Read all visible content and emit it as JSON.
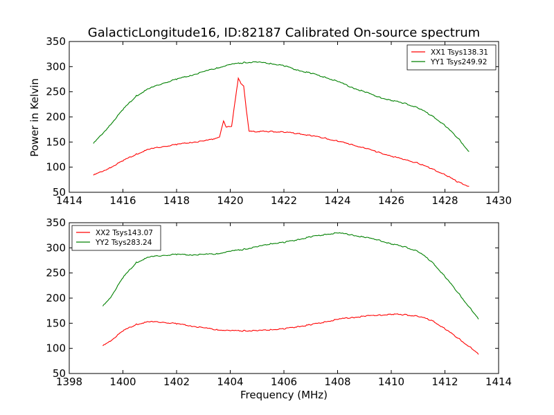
{
  "colors": {
    "xx": "#ff0000",
    "yy": "#008000"
  },
  "chart_data": [
    {
      "type": "line",
      "title": "GalacticLongitude16, ID:82187 Calibrated On-source spectrum",
      "xlabel": "",
      "ylabel": "Power in Kelvin",
      "xlim": [
        1414,
        1430
      ],
      "ylim": [
        50,
        350
      ],
      "xticks": [
        1414,
        1416,
        1418,
        1420,
        1422,
        1424,
        1426,
        1428,
        1430
      ],
      "yticks": [
        50,
        100,
        150,
        200,
        250,
        300,
        350
      ],
      "legend": "top-right",
      "series": [
        {
          "name": "XX1 Tsys138.31",
          "color": "#ff0000",
          "points": [
            [
              1414.9,
              84
            ],
            [
              1415.5,
              98
            ],
            [
              1416.0,
              113
            ],
            [
              1416.5,
              126
            ],
            [
              1417.0,
              136
            ],
            [
              1417.5,
              141
            ],
            [
              1418.0,
              145
            ],
            [
              1418.5,
              149
            ],
            [
              1419.0,
              152
            ],
            [
              1419.3,
              155
            ],
            [
              1419.6,
              160
            ],
            [
              1419.75,
              191
            ],
            [
              1419.85,
              180
            ],
            [
              1419.95,
              180
            ],
            [
              1420.05,
              182
            ],
            [
              1420.2,
              238
            ],
            [
              1420.3,
              278
            ],
            [
              1420.4,
              265
            ],
            [
              1420.5,
              262
            ],
            [
              1420.6,
              213
            ],
            [
              1420.7,
              172
            ],
            [
              1420.8,
              171
            ],
            [
              1421.0,
              171
            ],
            [
              1421.5,
              171
            ],
            [
              1422.0,
              170
            ],
            [
              1422.5,
              167
            ],
            [
              1423.0,
              163
            ],
            [
              1423.5,
              158
            ],
            [
              1424.0,
              152
            ],
            [
              1424.5,
              145
            ],
            [
              1425.0,
              138
            ],
            [
              1425.5,
              130
            ],
            [
              1426.0,
              122
            ],
            [
              1426.5,
              115
            ],
            [
              1427.0,
              108
            ],
            [
              1427.5,
              97
            ],
            [
              1428.0,
              85
            ],
            [
              1428.5,
              70
            ],
            [
              1428.9,
              62
            ]
          ]
        },
        {
          "name": "YY1 Tsys249.92",
          "color": "#008000",
          "points": [
            [
              1414.9,
              147
            ],
            [
              1415.5,
              182
            ],
            [
              1416.0,
              215
            ],
            [
              1416.5,
              242
            ],
            [
              1417.0,
              257
            ],
            [
              1417.5,
              267
            ],
            [
              1418.0,
              275
            ],
            [
              1418.5,
              282
            ],
            [
              1419.0,
              290
            ],
            [
              1419.5,
              297
            ],
            [
              1420.0,
              304
            ],
            [
              1420.5,
              308
            ],
            [
              1421.0,
              309
            ],
            [
              1421.5,
              306
            ],
            [
              1422.0,
              302
            ],
            [
              1422.5,
              293
            ],
            [
              1423.0,
              287
            ],
            [
              1423.5,
              279
            ],
            [
              1424.0,
              271
            ],
            [
              1424.5,
              259
            ],
            [
              1425.0,
              250
            ],
            [
              1425.5,
              240
            ],
            [
              1426.0,
              233
            ],
            [
              1426.5,
              227
            ],
            [
              1427.0,
              218
            ],
            [
              1427.5,
              203
            ],
            [
              1428.0,
              183
            ],
            [
              1428.5,
              157
            ],
            [
              1428.9,
              131
            ]
          ]
        }
      ]
    },
    {
      "type": "line",
      "title": "",
      "xlabel": "Frequency (MHz)",
      "ylabel": "",
      "xlim": [
        1398,
        1414
      ],
      "ylim": [
        50,
        350
      ],
      "xticks": [
        1398,
        1400,
        1402,
        1404,
        1406,
        1408,
        1410,
        1412,
        1414
      ],
      "yticks": [
        50,
        100,
        150,
        200,
        250,
        300,
        350
      ],
      "legend": "top-left",
      "series": [
        {
          "name": "XX2 Tsys143.07",
          "color": "#ff0000",
          "points": [
            [
              1399.25,
              105
            ],
            [
              1399.5,
              113
            ],
            [
              1400.0,
              135
            ],
            [
              1400.5,
              148
            ],
            [
              1401.0,
              153
            ],
            [
              1401.5,
              152
            ],
            [
              1402.0,
              149
            ],
            [
              1402.5,
              145
            ],
            [
              1403.0,
              141
            ],
            [
              1403.5,
              137
            ],
            [
              1404.0,
              135
            ],
            [
              1404.5,
              135
            ],
            [
              1405.0,
              135
            ],
            [
              1405.5,
              137
            ],
            [
              1406.0,
              139
            ],
            [
              1406.5,
              143
            ],
            [
              1407.0,
              147
            ],
            [
              1407.5,
              152
            ],
            [
              1408.0,
              158
            ],
            [
              1408.5,
              161
            ],
            [
              1409.0,
              164
            ],
            [
              1409.5,
              166
            ],
            [
              1410.0,
              168
            ],
            [
              1410.5,
              167
            ],
            [
              1411.0,
              164
            ],
            [
              1411.5,
              156
            ],
            [
              1412.0,
              139
            ],
            [
              1412.5,
              120
            ],
            [
              1413.0,
              100
            ],
            [
              1413.25,
              88
            ]
          ]
        },
        {
          "name": "YY2 Tsys283.24",
          "color": "#008000",
          "points": [
            [
              1399.25,
              184
            ],
            [
              1399.5,
              198
            ],
            [
              1400.0,
              241
            ],
            [
              1400.5,
              271
            ],
            [
              1401.0,
              282
            ],
            [
              1401.5,
              285
            ],
            [
              1402.0,
              287
            ],
            [
              1402.5,
              286
            ],
            [
              1403.0,
              287
            ],
            [
              1403.5,
              288
            ],
            [
              1404.0,
              293
            ],
            [
              1404.5,
              297
            ],
            [
              1405.0,
              302
            ],
            [
              1405.5,
              308
            ],
            [
              1406.0,
              311
            ],
            [
              1406.5,
              316
            ],
            [
              1407.0,
              322
            ],
            [
              1407.5,
              326
            ],
            [
              1408.0,
              330
            ],
            [
              1408.5,
              326
            ],
            [
              1409.0,
              321
            ],
            [
              1409.5,
              316
            ],
            [
              1410.0,
              308
            ],
            [
              1410.5,
              302
            ],
            [
              1411.0,
              293
            ],
            [
              1411.5,
              273
            ],
            [
              1412.0,
              243
            ],
            [
              1412.5,
              210
            ],
            [
              1413.0,
              176
            ],
            [
              1413.25,
              158
            ]
          ]
        }
      ]
    }
  ]
}
